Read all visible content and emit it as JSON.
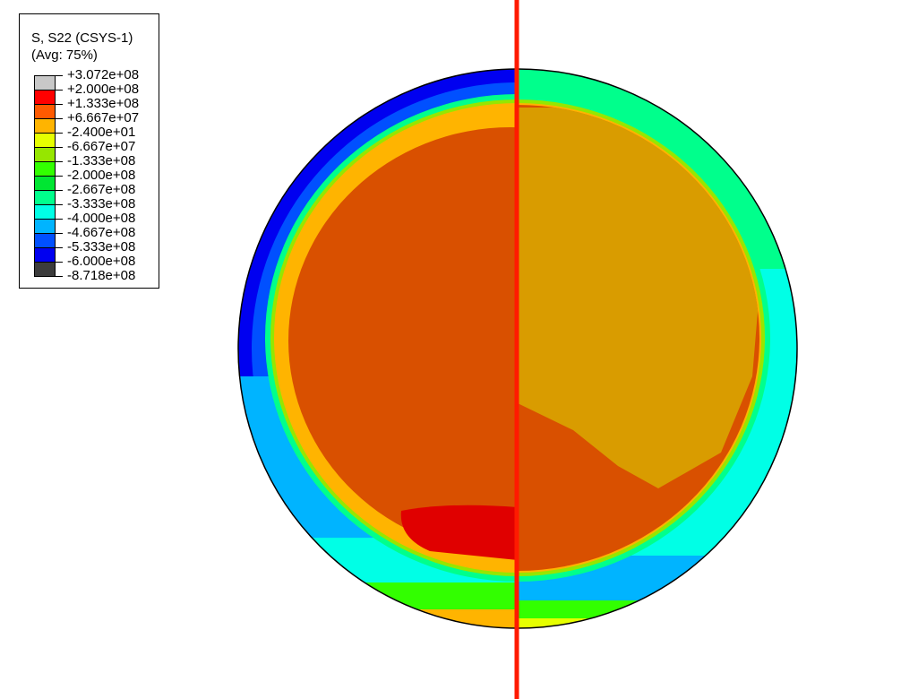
{
  "legend": {
    "title": "S, S22 (CSYS-1)",
    "subtitle": "(Avg: 75%)",
    "labels": [
      "+3.072e+08",
      "+2.000e+08",
      "+1.333e+08",
      "+6.667e+07",
      "-2.400e+01",
      "-6.667e+07",
      "-1.333e+08",
      "-2.000e+08",
      "-2.667e+08",
      "-3.333e+08",
      "-4.000e+08",
      "-4.667e+08",
      "-5.333e+08",
      "-6.000e+08",
      "-8.718e+08"
    ],
    "colors": [
      "#c8c8c8",
      "#ff0000",
      "#ff5a00",
      "#ffb400",
      "#e6ff00",
      "#96e600",
      "#32ff00",
      "#00e632",
      "#00ff8c",
      "#00ffe6",
      "#00b4ff",
      "#0050ff",
      "#0000f0",
      "#3c3c3c"
    ]
  },
  "plot": {
    "section_line_color": "#ff1a00"
  }
}
